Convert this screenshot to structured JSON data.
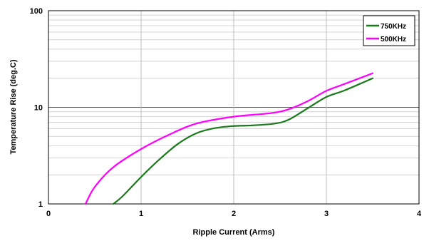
{
  "chart_data": {
    "type": "line",
    "xlabel": "Ripple Current (Arms)",
    "ylabel": "Temperature Rise (deg.C)",
    "xlim": [
      0,
      4
    ],
    "ylim": [
      1,
      100
    ],
    "yscale": "log",
    "x_ticks": [
      "0",
      "1",
      "2",
      "3",
      "4"
    ],
    "y_ticks": [
      "1",
      "10",
      "100"
    ],
    "grid": true,
    "legend_position": "top-right",
    "series": [
      {
        "name": "750KHz",
        "color": "#1a7a1a",
        "x": [
          0.7,
          0.8,
          1.0,
          1.2,
          1.4,
          1.6,
          1.8,
          2.0,
          2.2,
          2.45,
          2.6,
          2.8,
          3.0,
          3.2,
          3.5
        ],
        "y": [
          1.0,
          1.2,
          1.9,
          2.9,
          4.2,
          5.4,
          6.1,
          6.4,
          6.5,
          6.8,
          7.5,
          9.8,
          12.8,
          15.0,
          20.0
        ]
      },
      {
        "name": "500KHz",
        "color": "#ff00ff",
        "x": [
          0.4,
          0.5,
          0.7,
          1.0,
          1.3,
          1.6,
          2.0,
          2.4,
          2.6,
          2.8,
          3.0,
          3.2,
          3.5
        ],
        "y": [
          1.0,
          1.5,
          2.4,
          3.7,
          5.2,
          6.8,
          8.0,
          8.7,
          9.6,
          11.6,
          14.8,
          17.5,
          22.5
        ]
      }
    ]
  }
}
